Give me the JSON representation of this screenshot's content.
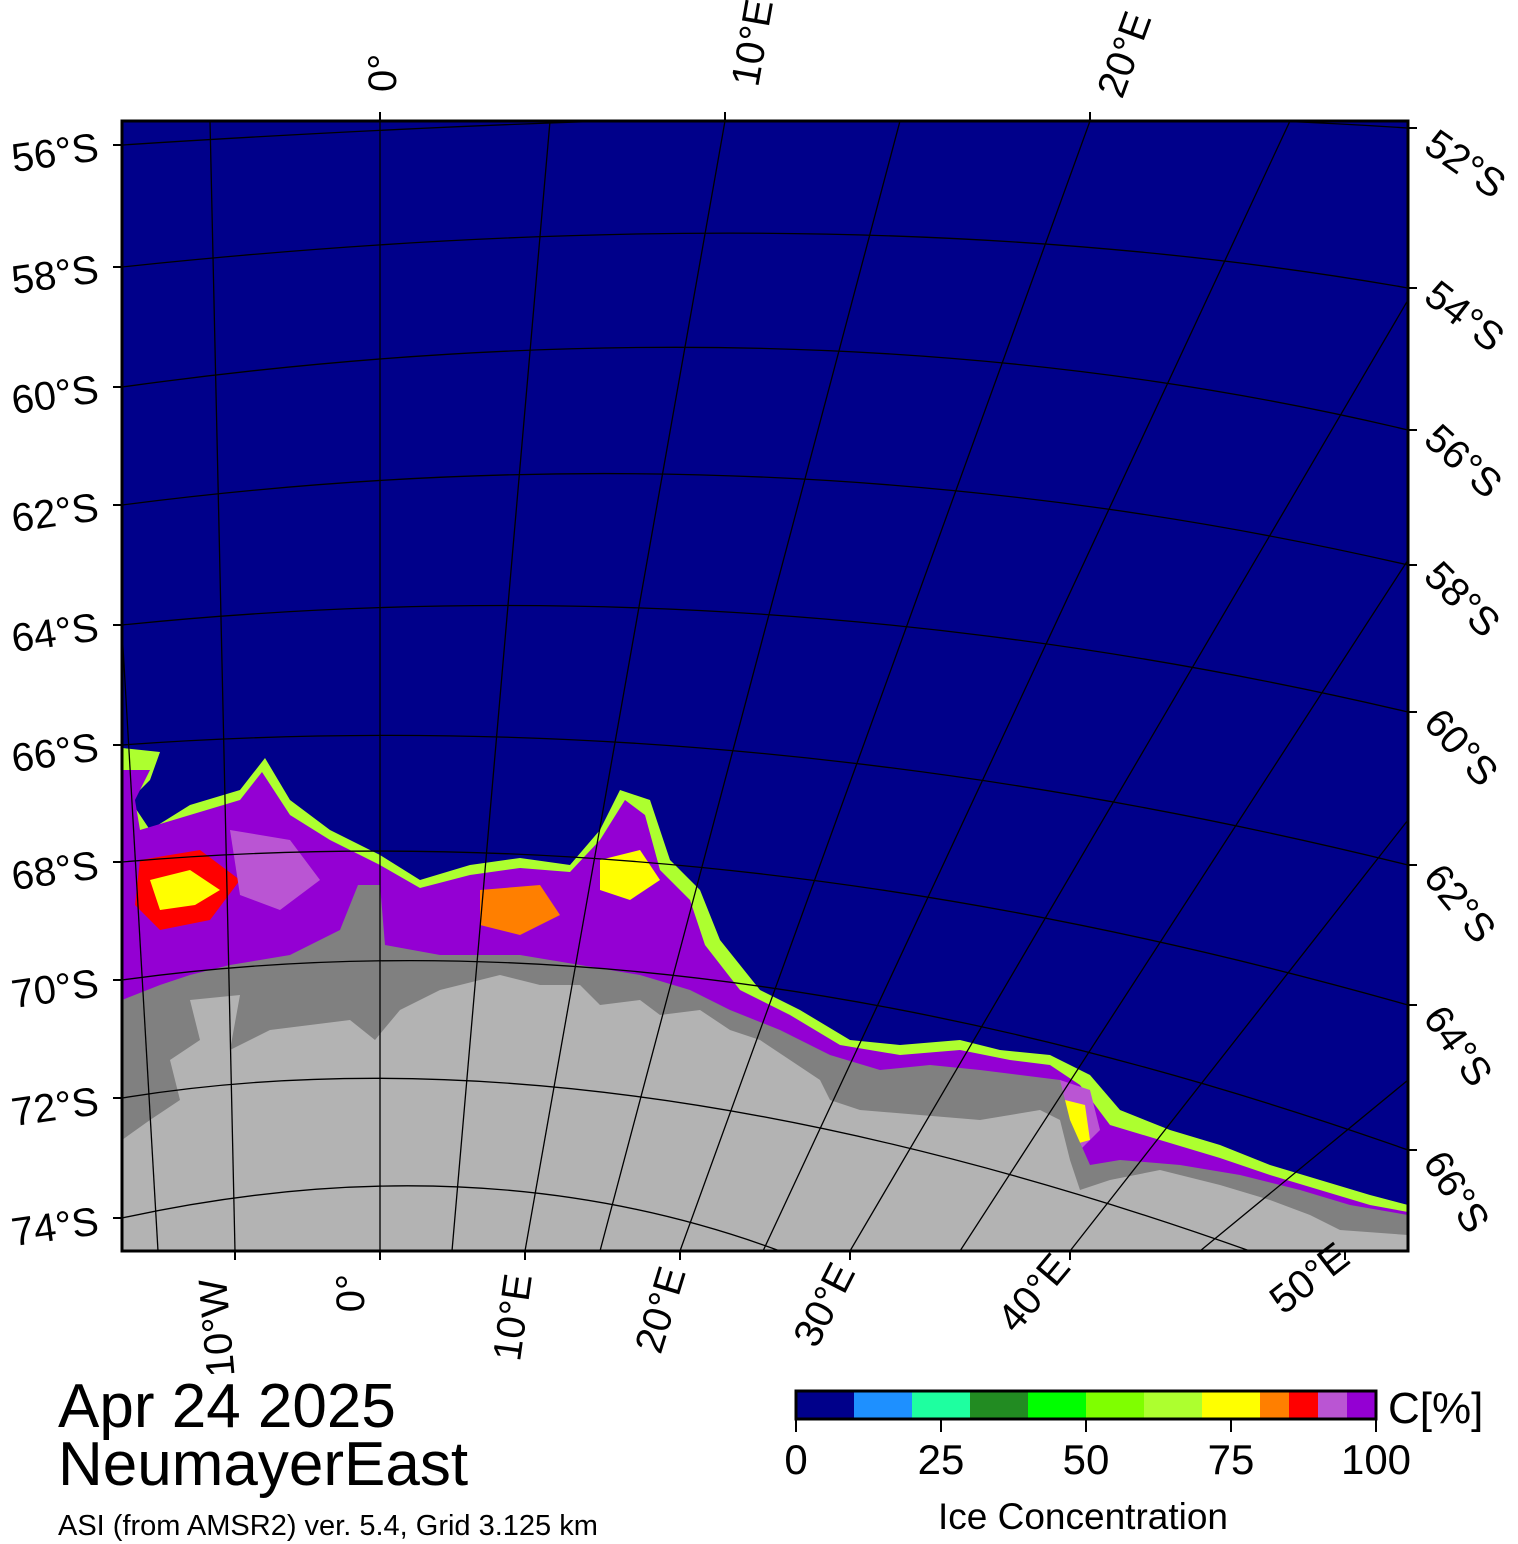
{
  "map": {
    "date": "Apr 24 2025",
    "region": "NeumayerEast",
    "product": "ASI (from AMSR2) ver. 5.4,  Grid 3.125 km",
    "colors": {
      "ocean_open": "#00008a",
      "land_ice_shelf": "#808080",
      "land_continent": "#b3b3b3",
      "sea_ice_high": "#8b008b",
      "graticule": "#000000"
    },
    "axis_labels": {
      "top": [
        "0°",
        "10°E",
        "20°E"
      ],
      "bottom": [
        "10°W",
        "0°",
        "10°E",
        "20°E",
        "30°E",
        "40°E",
        "50°E"
      ],
      "left": [
        "56°S",
        "58°S",
        "60°S",
        "62°S",
        "64°S",
        "66°S",
        "68°S",
        "70°S",
        "72°S",
        "74°S"
      ],
      "right": [
        "52°S",
        "54°S",
        "56°S",
        "58°S",
        "60°S",
        "62°S",
        "64°S",
        "66°S"
      ]
    }
  },
  "colorbar": {
    "unit": "C[%]",
    "title": "Ice Concentration",
    "tick_labels": [
      "0",
      "25",
      "50",
      "75",
      "100"
    ],
    "range": [
      0,
      100
    ],
    "bins": [
      {
        "from": 0,
        "to": 10,
        "color": "#00008a"
      },
      {
        "from": 10,
        "to": 20,
        "color": "#1e90ff"
      },
      {
        "from": 20,
        "to": 30,
        "color": "#1effa0"
      },
      {
        "from": 30,
        "to": 40,
        "color": "#228b22"
      },
      {
        "from": 40,
        "to": 50,
        "color": "#00ff00"
      },
      {
        "from": 50,
        "to": 60,
        "color": "#7fff00"
      },
      {
        "from": 60,
        "to": 70,
        "color": "#adff2f"
      },
      {
        "from": 70,
        "to": 80,
        "color": "#ffff00"
      },
      {
        "from": 80,
        "to": 85,
        "color": "#ff7f00"
      },
      {
        "from": 85,
        "to": 90,
        "color": "#ff0000"
      },
      {
        "from": 90,
        "to": 95,
        "color": "#ba55d3"
      },
      {
        "from": 95,
        "to": 100,
        "color": "#9400d3"
      }
    ]
  }
}
